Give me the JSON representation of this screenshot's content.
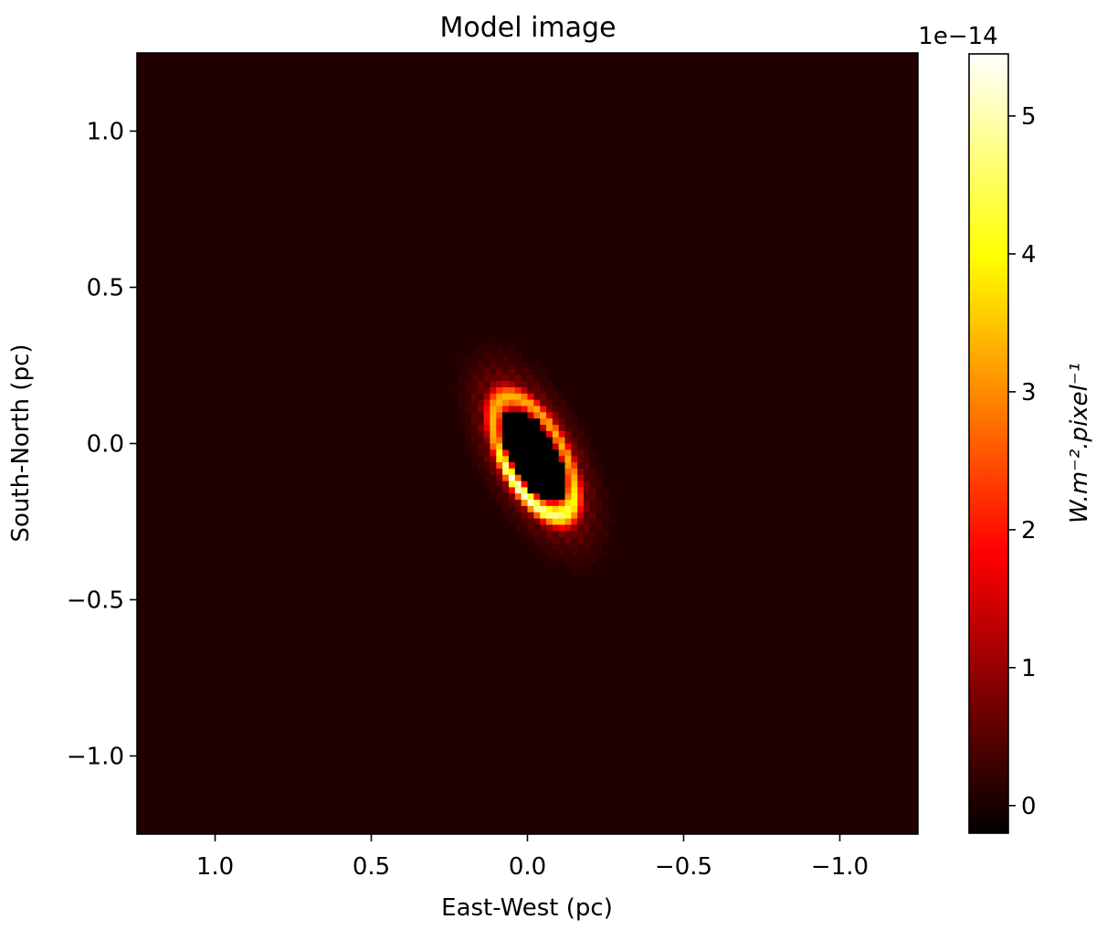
{
  "chart_data": {
    "type": "heatmap",
    "title": "Model image",
    "xlabel": "East-West (pc)",
    "ylabel": "South-North (pc)",
    "xlim": [
      1.25,
      -1.25
    ],
    "ylim": [
      -1.25,
      1.25
    ],
    "x_inverted": true,
    "xticks": [
      1.0,
      0.5,
      0.0,
      -0.5,
      -1.0
    ],
    "yticks": [
      -1.0,
      -0.5,
      0.0,
      0.5,
      1.0
    ],
    "xtick_labels": [
      "1.0",
      "0.5",
      "0.0",
      "−0.5",
      "−1.0"
    ],
    "ytick_labels": [
      "−1.0",
      "−0.5",
      "0.0",
      "0.5",
      "1.0"
    ],
    "grid": false,
    "colormap": "hot",
    "colorbar": {
      "label": "W.m⁻².pixel⁻¹",
      "exponent_label": "1e−14",
      "vmin": -0.2,
      "vmax": 5.45,
      "ticks": [
        0,
        1,
        2,
        3,
        4,
        5
      ],
      "tick_labels": [
        "0",
        "1",
        "2",
        "3",
        "4",
        "5"
      ]
    },
    "ring": {
      "center_x": -0.01,
      "center_y": -0.03,
      "semi_major_pc": 0.22,
      "semi_minor_pc": 0.14,
      "peak_value": 5.4,
      "inner_value": -0.2,
      "background_value": 0.1,
      "peak_side": "west"
    }
  }
}
